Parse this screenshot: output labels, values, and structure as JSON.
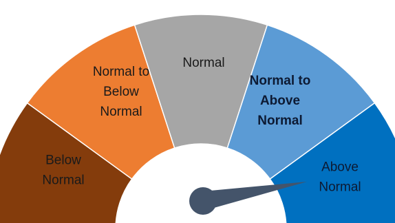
{
  "gauge": {
    "segments": [
      {
        "id": "below-normal",
        "lines": [
          "Below",
          "Normal"
        ],
        "color": "#843C0C",
        "text_color": "#1a1a1a",
        "bold": false
      },
      {
        "id": "normal-to-below-normal",
        "lines": [
          "Normal to",
          "Below",
          "Normal"
        ],
        "color": "#ED7D31",
        "text_color": "#1a1a1a",
        "bold": false
      },
      {
        "id": "normal",
        "lines": [
          "Normal"
        ],
        "color": "#A6A6A6",
        "text_color": "#1a1a1a",
        "bold": false
      },
      {
        "id": "normal-to-above-normal",
        "lines": [
          "Normal to",
          "Above",
          "Normal"
        ],
        "color": "#5B9BD5",
        "text_color": "#0d1a33",
        "bold": true
      },
      {
        "id": "above-normal",
        "lines": [
          "Above",
          "Normal"
        ],
        "color": "#0070C0",
        "text_color": "#0d1a33",
        "bold": false
      }
    ],
    "needle_color": "#44546A",
    "pointer_category": "Above Normal"
  }
}
